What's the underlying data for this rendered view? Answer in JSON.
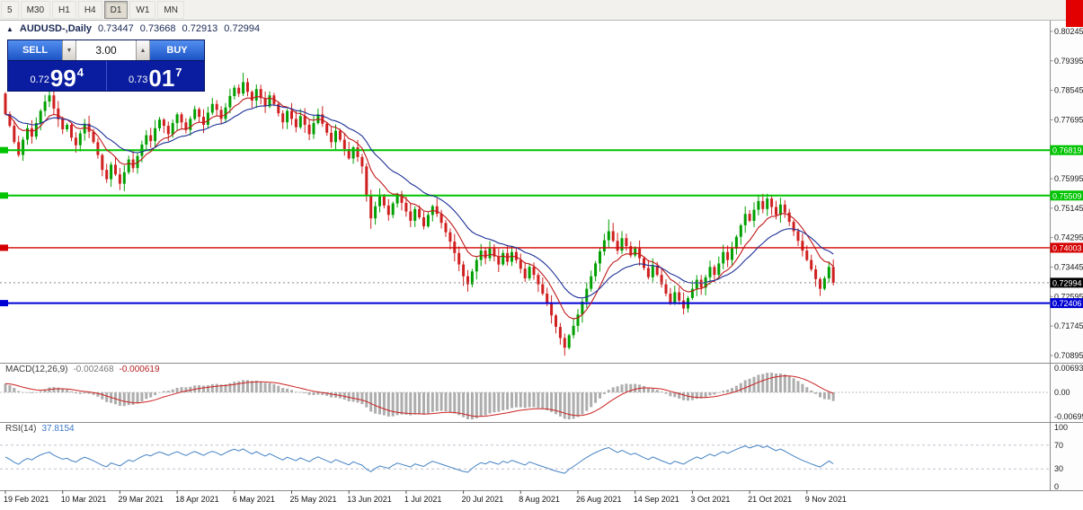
{
  "toolbar": {
    "timeframes": [
      "5",
      "M30",
      "H1",
      "H4",
      "D1",
      "W1",
      "MN"
    ],
    "active": "D1"
  },
  "chart_header": {
    "collapse_icon": "▲",
    "symbol": "AUDUSD-,Daily",
    "open": "0.73447",
    "high": "0.73668",
    "low": "0.72913",
    "close": "0.72994"
  },
  "one_click": {
    "sell_label": "SELL",
    "buy_label": "BUY",
    "volume": "3.00",
    "spin_down": "▼",
    "spin_up": "▲",
    "sell_price": {
      "prefix": "0.72",
      "big": "99",
      "sup": "4"
    },
    "buy_price": {
      "prefix": "0.73",
      "big": "01",
      "sup": "7"
    }
  },
  "indicators": {
    "macd": {
      "label": "MACD(12,26,9)",
      "value": "-0.002468",
      "signal": "-0.000619",
      "axis": [
        "0.006936",
        "0.00",
        "-0.006993"
      ],
      "params": {
        "fast": 12,
        "slow": 26,
        "signal": 9
      }
    },
    "rsi": {
      "label": "RSI(14)",
      "value": "37.8154",
      "axis": [
        "100",
        "70",
        "30",
        "0"
      ],
      "levels": [
        70,
        30
      ],
      "period": 14
    },
    "moving_averages": [
      {
        "period": 9,
        "color_key": "ma_red"
      },
      {
        "period": 20,
        "color_key": "ma_blue"
      }
    ]
  },
  "axis_tags": [
    {
      "label": "0.76819",
      "value": 0.76819,
      "bg": "#00c400"
    },
    {
      "label": "0.75509",
      "value": 0.75509,
      "bg": "#00c400"
    },
    {
      "label": "0.74003",
      "value": 0.74003,
      "bg": "#d40000"
    },
    {
      "label": "0.72406",
      "value": 0.72406,
      "bg": "#0000d4"
    },
    {
      "label": "0.72994",
      "value": 0.72994,
      "bg": "#000000"
    }
  ],
  "colors": {
    "up": "#00a000",
    "down": "#d02020",
    "ma_red": "#c01818",
    "ma_blue": "#1c2f96",
    "hline_green": "#00c400",
    "hline_red": "#d40000",
    "hline_blue": "#0000d4",
    "macd_hist": "#adadad",
    "macd_signal": "#cc2222",
    "rsi": "#4482c4",
    "axis_text": "#1c1c1c",
    "panel_line": "#8c8c8c"
  },
  "chart_data": {
    "type": "candlestick",
    "symbol": "AUDUSD-",
    "timeframe": "Daily",
    "y_range": [
      0.70895,
      0.80245
    ],
    "price_ticks": [
      "0.80245",
      "0.79395",
      "0.78545",
      "0.77695",
      "0.76845",
      "0.75995",
      "0.75145",
      "0.74295",
      "0.73445",
      "0.72595",
      "0.71745",
      "0.70895"
    ],
    "x_labels": [
      "19 Feb 2021",
      "10 Mar 2021",
      "29 Mar 2021",
      "18 Apr 2021",
      "6 May 2021",
      "25 May 2021",
      "13 Jun 2021",
      "1 Jul 2021",
      "20 Jul 2021",
      "8 Aug 2021",
      "26 Aug 2021",
      "14 Sep 2021",
      "3 Oct 2021",
      "21 Oct 2021",
      "9 Nov 2021"
    ],
    "bars_per_label": 13,
    "first_open": 0.7845,
    "closes": [
      0.7786,
      0.7752,
      0.7705,
      0.7668,
      0.7712,
      0.7745,
      0.7721,
      0.776,
      0.7795,
      0.7822,
      0.784,
      0.7802,
      0.7771,
      0.7742,
      0.7755,
      0.7718,
      0.7696,
      0.773,
      0.7758,
      0.7735,
      0.7705,
      0.7668,
      0.7625,
      0.7598,
      0.764,
      0.7612,
      0.7585,
      0.7618,
      0.7655,
      0.763,
      0.7665,
      0.7698,
      0.7725,
      0.7708,
      0.7745,
      0.777,
      0.7752,
      0.7728,
      0.776,
      0.7785,
      0.7762,
      0.774,
      0.7772,
      0.78,
      0.7778,
      0.7755,
      0.779,
      0.7815,
      0.7798,
      0.7772,
      0.7805,
      0.7838,
      0.7862,
      0.7845,
      0.7878,
      0.785,
      0.7825,
      0.7858,
      0.7832,
      0.7808,
      0.784,
      0.7815,
      0.7788,
      0.7762,
      0.7795,
      0.7772,
      0.7748,
      0.778,
      0.7755,
      0.7728,
      0.776,
      0.7785,
      0.7758,
      0.7732,
      0.7705,
      0.7738,
      0.7712,
      0.7685,
      0.7658,
      0.769,
      0.7662,
      0.7635,
      0.755,
      0.7485,
      0.752,
      0.7548,
      0.7522,
      0.7495,
      0.7528,
      0.7555,
      0.753,
      0.7505,
      0.7478,
      0.7512,
      0.7488,
      0.7462,
      0.7495,
      0.752,
      0.7498,
      0.7472,
      0.7445,
      0.7418,
      0.7385,
      0.7352,
      0.7318,
      0.7295,
      0.7332,
      0.7365,
      0.7392,
      0.737,
      0.7398,
      0.7375,
      0.7352,
      0.7385,
      0.736,
      0.7388,
      0.7365,
      0.734,
      0.7312,
      0.7345,
      0.7322,
      0.7295,
      0.7268,
      0.724,
      0.7205,
      0.7172,
      0.714,
      0.7112,
      0.7148,
      0.7175,
      0.7208,
      0.7245,
      0.7282,
      0.7318,
      0.7355,
      0.739,
      0.7422,
      0.7448,
      0.742,
      0.7392,
      0.7428,
      0.7405,
      0.7378,
      0.7398,
      0.737,
      0.7342,
      0.7315,
      0.7348,
      0.7322,
      0.7295,
      0.7268,
      0.7242,
      0.7272,
      0.7248,
      0.7225,
      0.7255,
      0.7282,
      0.7308,
      0.7285,
      0.7315,
      0.7345,
      0.7322,
      0.7355,
      0.7388,
      0.7365,
      0.7398,
      0.7432,
      0.7465,
      0.7498,
      0.7478,
      0.751,
      0.7535,
      0.7512,
      0.7542,
      0.7518,
      0.7495,
      0.7525,
      0.7502,
      0.7475,
      0.7448,
      0.742,
      0.7392,
      0.7365,
      0.7338,
      0.731,
      0.7282,
      0.7312,
      0.7345,
      0.72994
    ],
    "last_candle": {
      "open": 0.73447,
      "high": 0.73668,
      "low": 0.72913,
      "close": 0.72994
    },
    "wick_overrides": {
      "high": {
        "54": 0.7905,
        "137": 0.7482,
        "173": 0.7556
      },
      "low": {
        "83": 0.7455,
        "104": 0.729,
        "127": 0.7089
      }
    },
    "hlines": [
      {
        "value": 0.76819,
        "color": "#00c400",
        "width": 2
      },
      {
        "value": 0.75509,
        "color": "#00c400",
        "width": 2
      },
      {
        "value": 0.74003,
        "color": "#d40000",
        "width": 1.4
      },
      {
        "value": 0.72406,
        "color": "#0000d4",
        "width": 2
      }
    ],
    "current_price": 0.72994
  }
}
